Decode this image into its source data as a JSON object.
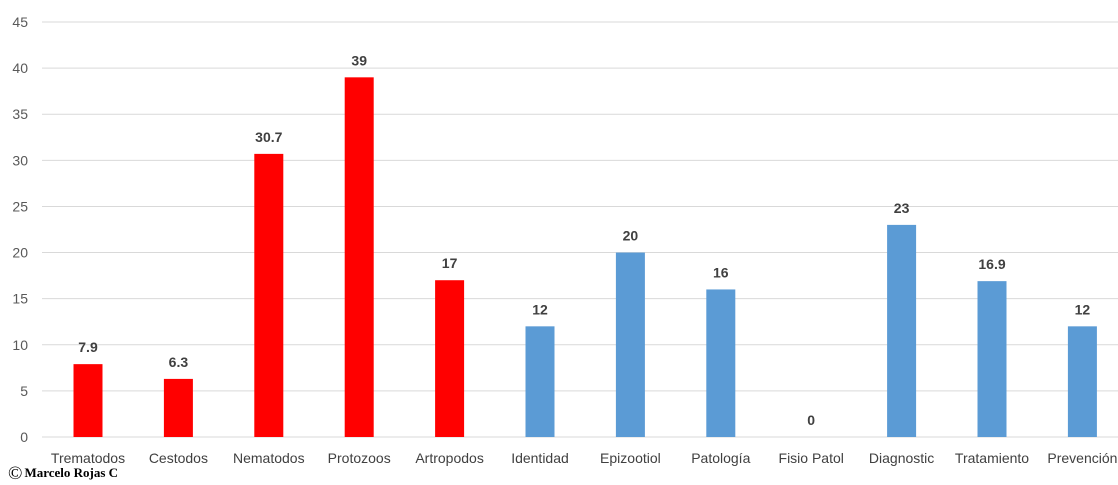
{
  "chart_data": {
    "type": "bar",
    "categories": [
      "Trematodos",
      "Cestodos",
      "Nematodos",
      "Protozoos",
      "Artropodos",
      "Identidad",
      "Epizootiol",
      "Patología",
      "Fisio Patol",
      "Diagnostic",
      "Tratamiento",
      "Prevención"
    ],
    "values": [
      7.9,
      6.3,
      30.7,
      39,
      17,
      12,
      20,
      16,
      0,
      23,
      16.9,
      12
    ],
    "value_labels": [
      "7.9",
      "6.3",
      "30.7",
      "39",
      "17",
      "12",
      "20",
      "16",
      "0",
      "23",
      "16.9",
      "12"
    ],
    "bar_colors": [
      "#ff0000",
      "#ff0000",
      "#ff0000",
      "#ff0000",
      "#ff0000",
      "#5b9bd5",
      "#5b9bd5",
      "#5b9bd5",
      "#5b9bd5",
      "#5b9bd5",
      "#5b9bd5",
      "#5b9bd5"
    ],
    "yticks": [
      0,
      5,
      10,
      15,
      20,
      25,
      30,
      35,
      40,
      45
    ],
    "ylim": [
      0,
      45
    ],
    "grid": true,
    "title": "",
    "xlabel": "",
    "ylabel": ""
  },
  "credit": {
    "symbol": "©",
    "text": "Marcelo Rojas C"
  },
  "colors": {
    "gridline": "#d9d9d9",
    "axis_text": "#595959",
    "label_text": "#404040"
  }
}
